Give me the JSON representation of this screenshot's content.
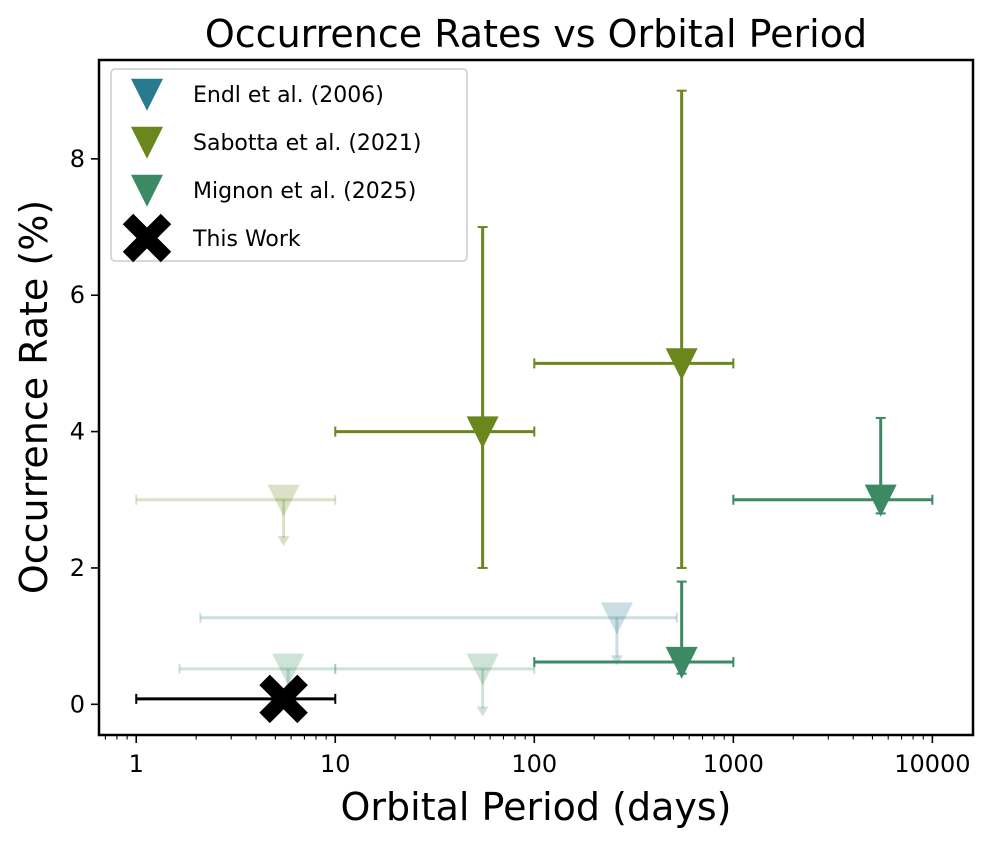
{
  "chart_data": {
    "type": "scatter",
    "title": "Occurrence Rates vs Orbital Period",
    "xlabel": "Orbital Period (days)",
    "ylabel": "Occurrence Rate (%)",
    "xscale": "log",
    "xlim": [
      0.65,
      16000
    ],
    "ylim": [
      -0.45,
      9.45
    ],
    "xticks": [
      1,
      10,
      100,
      1000,
      10000
    ],
    "xtick_labels": [
      "1",
      "10",
      "100",
      "1000",
      "10000"
    ],
    "yticks": [
      0,
      2,
      4,
      6,
      8
    ],
    "ytick_labels": [
      "0",
      "2",
      "4",
      "6",
      "8"
    ],
    "legend_position": "top-left",
    "legend": [
      {
        "label": "Endl et al. (2006)",
        "marker": "triangle-down",
        "color": "#2a7a8f"
      },
      {
        "label": "Sabotta et al. (2021)",
        "marker": "triangle-down",
        "color": "#6b861d"
      },
      {
        "label": "Mignon et al. (2025)",
        "marker": "triangle-down",
        "color": "#3b8a63"
      },
      {
        "label": "This Work",
        "marker": "x-bold",
        "color": "#000000"
      }
    ],
    "series": [
      {
        "name": "Endl et al. (2006)",
        "color": "#2a7a8f",
        "marker": "triangle-down",
        "points": [
          {
            "x": 260,
            "y": 1.27,
            "xmin": 2.1,
            "xmax": 520,
            "faded": true,
            "upper_limit": true,
            "arrow_to": 0.6
          }
        ]
      },
      {
        "name": "Sabotta et al. (2021)",
        "color": "#6b861d",
        "marker": "triangle-down",
        "points": [
          {
            "x": 5.5,
            "y": 3.0,
            "xmin": 1.0,
            "xmax": 10,
            "faded": true,
            "upper_limit": true,
            "arrow_to": 2.35
          },
          {
            "x": 55,
            "y": 4.0,
            "xmin": 10,
            "xmax": 100,
            "ymin": 2.0,
            "ymax": 7.0,
            "faded": false
          },
          {
            "x": 550,
            "y": 5.0,
            "xmin": 100,
            "xmax": 1000,
            "ymin": 2.0,
            "ymax": 9.0,
            "faded": false
          }
        ]
      },
      {
        "name": "Mignon et al. (2025)",
        "color": "#3b8a63",
        "marker": "triangle-down",
        "points": [
          {
            "x": 5.8,
            "y": 0.52,
            "xmin": 1.65,
            "xmax": 10,
            "faded": true,
            "upper_limit": true,
            "arrow_to": 0.0
          },
          {
            "x": 55,
            "y": 0.52,
            "xmin": 10,
            "xmax": 100,
            "faded": true,
            "upper_limit": true,
            "arrow_to": -0.15
          },
          {
            "x": 550,
            "y": 0.62,
            "xmin": 100,
            "xmax": 1000,
            "ymin": 0.45,
            "ymax": 1.8,
            "faded": false
          },
          {
            "x": 5500,
            "y": 3.0,
            "xmin": 1000,
            "xmax": 10000,
            "ymin": 2.8,
            "ymax": 4.2,
            "faded": false
          }
        ]
      },
      {
        "name": "This Work",
        "color": "#000000",
        "marker": "x-bold",
        "points": [
          {
            "x": 5.5,
            "y": 0.08,
            "xmin": 1.0,
            "xmax": 10,
            "faded": false
          }
        ]
      }
    ]
  }
}
